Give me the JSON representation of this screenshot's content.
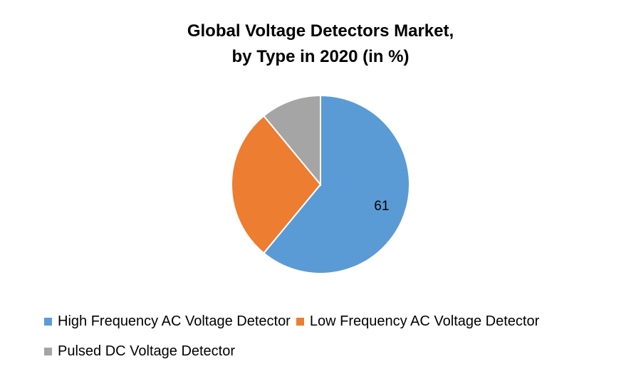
{
  "chart_data": {
    "type": "pie",
    "title": "Global Voltage Detectors Market, by Type in 2020 (in %)",
    "title_lines": [
      "Global Voltage Detectors Market,",
      "by Type in 2020 (in %)"
    ],
    "categories": [
      "High Frequency AC Voltage Detector",
      "Low Frequency AC Voltage Detector",
      "Pulsed DC Voltage Detector"
    ],
    "values": [
      61,
      28,
      11
    ],
    "colors": [
      "#5B9BD5",
      "#ED7D31",
      "#A5A5A5"
    ],
    "data_labels": [
      "61",
      "",
      ""
    ],
    "legend_position": "bottom"
  }
}
